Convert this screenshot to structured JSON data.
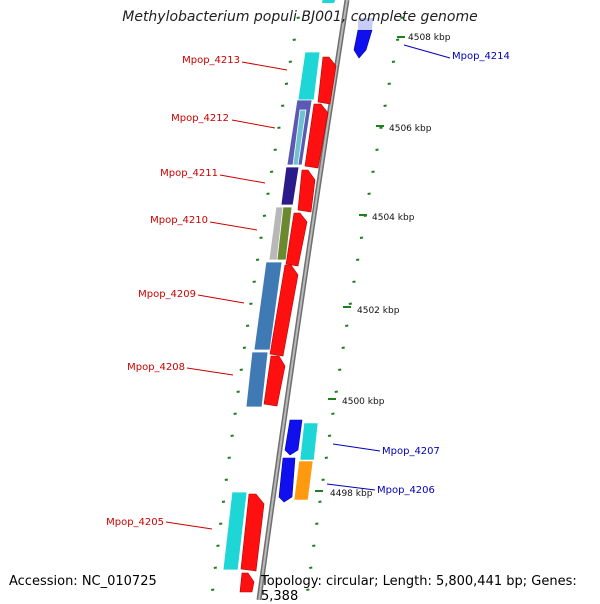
{
  "title": "Methylobacterium populi BJ001, complete genome",
  "footer": {
    "accession": "Accession: NC_010725",
    "topology": "Topology: circular; Length: 5,800,441 bp; Genes: 5,388"
  },
  "colors": {
    "forward_label": "#cc0000",
    "reverse_label": "#0000bb",
    "backbone": "#8a8a8a",
    "tick": "#1f7f1f",
    "cds_forward": "#ff0000",
    "cds_reverse": "#0000ee"
  },
  "scale_labels": [
    "4508 kbp",
    "4506 kbp",
    "4504 kbp",
    "4502 kbp",
    "4500 kbp",
    "4498 kbp"
  ],
  "gene_labels": [
    {
      "text": "Mpop_4214",
      "strand": "reverse"
    },
    {
      "text": "Mpop_4213",
      "strand": "forward"
    },
    {
      "text": "Mpop_4212",
      "strand": "forward"
    },
    {
      "text": "Mpop_4211",
      "strand": "forward"
    },
    {
      "text": "Mpop_4210",
      "strand": "forward"
    },
    {
      "text": "Mpop_4209",
      "strand": "forward"
    },
    {
      "text": "Mpop_4208",
      "strand": "forward"
    },
    {
      "text": "Mpop_4207",
      "strand": "reverse"
    },
    {
      "text": "Mpop_4206",
      "strand": "reverse"
    },
    {
      "text": "Mpop_4205",
      "strand": "forward"
    }
  ]
}
